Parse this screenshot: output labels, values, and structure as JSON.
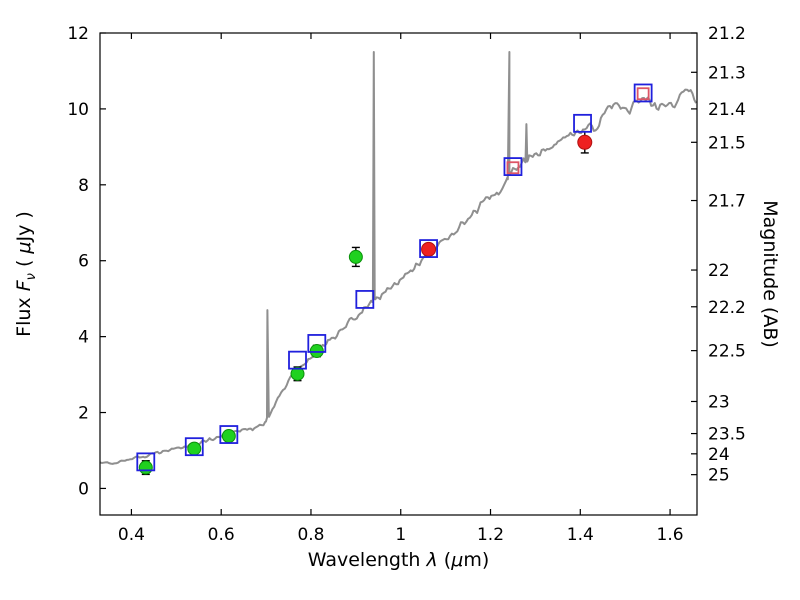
{
  "chart_data": {
    "type": "line",
    "subtype": "sed-spectrum-with-photometry",
    "title": "",
    "xlabel_parts": [
      {
        "t": "Wavelength  "
      },
      {
        "t": "λ",
        "i": 1
      },
      {
        "t": " ("
      },
      {
        "t": "μ",
        "i": 1
      },
      {
        "t": "m)"
      }
    ],
    "ylabel_left_parts": [
      {
        "t": "Flux  "
      },
      {
        "t": "F",
        "i": 1
      },
      {
        "t": "ν",
        "i": 1,
        "s": 1
      },
      {
        "t": "  ( "
      },
      {
        "t": "μ",
        "i": 1
      },
      {
        "t": "Jy )"
      }
    ],
    "ylabel_right": "Magnitude (AB)",
    "xlim": [
      0.33,
      1.66
    ],
    "ylim": [
      -0.7,
      12
    ],
    "x_ticks": [
      0.4,
      0.6,
      0.8,
      1.0,
      1.2,
      1.4,
      1.6
    ],
    "x_tick_labels": [
      "0.4",
      "0.6",
      "0.8",
      "1",
      "1.2",
      "1.4",
      "1.6"
    ],
    "y_ticks_left": [
      0,
      2,
      4,
      6,
      8,
      10,
      12
    ],
    "y_tick_labels_left": [
      "0",
      "2",
      "4",
      "6",
      "8",
      "10",
      "12"
    ],
    "y_ticks_right_mag": [
      21.2,
      21.3,
      21.4,
      21.5,
      21.7,
      22,
      22.2,
      22.5,
      23,
      23.5,
      24,
      25
    ],
    "y_tick_labels_right": [
      "21.2",
      "21.3",
      "21.4",
      "21.5",
      "21.7",
      "22",
      "22.2",
      "22.5",
      "23",
      "23.5",
      "24",
      "25"
    ],
    "mag_zeropoint": 23.9,
    "grid": false,
    "legend": null,
    "spectrum": {
      "name": "model-spectrum",
      "color": "#8f8f8f",
      "linewidth": 2,
      "noise_seed": 77,
      "noise_base": 0.045,
      "noise_flux_scale": 0.012,
      "anchors": [
        [
          0.33,
          0.7
        ],
        [
          0.36,
          0.66
        ],
        [
          0.385,
          0.74
        ],
        [
          0.41,
          0.8
        ],
        [
          0.44,
          0.88
        ],
        [
          0.47,
          0.97
        ],
        [
          0.5,
          1.05
        ],
        [
          0.53,
          1.12
        ],
        [
          0.56,
          1.22
        ],
        [
          0.59,
          1.33
        ],
        [
          0.62,
          1.45
        ],
        [
          0.65,
          1.55
        ],
        [
          0.675,
          1.6
        ],
        [
          0.695,
          1.68
        ],
        [
          0.71,
          1.95
        ],
        [
          0.725,
          2.35
        ],
        [
          0.74,
          2.65
        ],
        [
          0.755,
          2.9
        ],
        [
          0.77,
          3.1
        ],
        [
          0.785,
          3.28
        ],
        [
          0.8,
          3.45
        ],
        [
          0.815,
          3.6
        ],
        [
          0.83,
          3.75
        ],
        [
          0.845,
          3.92
        ],
        [
          0.86,
          4.1
        ],
        [
          0.875,
          4.28
        ],
        [
          0.89,
          4.42
        ],
        [
          0.905,
          4.55
        ],
        [
          0.92,
          4.72
        ],
        [
          0.935,
          4.9
        ],
        [
          0.95,
          5.05
        ],
        [
          0.97,
          5.22
        ],
        [
          0.99,
          5.42
        ],
        [
          1.01,
          5.62
        ],
        [
          1.03,
          5.82
        ],
        [
          1.05,
          6.05
        ],
        [
          1.07,
          6.25
        ],
        [
          1.09,
          6.48
        ],
        [
          1.11,
          6.7
        ],
        [
          1.13,
          6.9
        ],
        [
          1.15,
          7.1
        ],
        [
          1.17,
          7.32
        ],
        [
          1.19,
          7.55
        ],
        [
          1.21,
          7.75
        ],
        [
          1.23,
          7.95
        ],
        [
          1.245,
          8.3
        ],
        [
          1.26,
          8.5
        ],
        [
          1.275,
          8.6
        ],
        [
          1.29,
          8.7
        ],
        [
          1.31,
          8.85
        ],
        [
          1.33,
          9.0
        ],
        [
          1.35,
          9.15
        ],
        [
          1.37,
          9.28
        ],
        [
          1.39,
          9.35
        ],
        [
          1.41,
          9.42
        ],
        [
          1.43,
          9.5
        ],
        [
          1.45,
          9.75
        ],
        [
          1.465,
          10.05
        ],
        [
          1.48,
          10.15
        ],
        [
          1.5,
          9.95
        ],
        [
          1.52,
          10.1
        ],
        [
          1.54,
          10.35
        ],
        [
          1.555,
          10.2
        ],
        [
          1.57,
          10.0
        ],
        [
          1.59,
          10.0
        ],
        [
          1.61,
          10.15
        ],
        [
          1.63,
          10.45
        ],
        [
          1.645,
          10.55
        ],
        [
          1.655,
          10.05
        ],
        [
          1.66,
          10.2
        ]
      ],
      "emission_spikes": [
        [
          0.703,
          4.7
        ],
        [
          0.94,
          11.5
        ],
        [
          1.242,
          11.5
        ],
        [
          1.28,
          9.6
        ]
      ]
    },
    "photometry": [
      {
        "name": "observed-photometry-green-circles",
        "marker": "circle",
        "fill": "#1fd11f",
        "edge": "#0a8f0a",
        "size": 13,
        "points": [
          {
            "x": 0.432,
            "y": 0.55,
            "err": 0.18
          },
          {
            "x": 0.54,
            "y": 1.05,
            "err": 0.1
          },
          {
            "x": 0.617,
            "y": 1.38,
            "err": 0.1
          },
          {
            "x": 0.77,
            "y": 3.02,
            "err": 0.18
          },
          {
            "x": 0.813,
            "y": 3.62,
            "err": 0.15
          },
          {
            "x": 0.9,
            "y": 6.1,
            "err": 0.25
          }
        ]
      },
      {
        "name": "observed-photometry-red-circles",
        "marker": "circle",
        "fill": "#ee2020",
        "edge": "#b01010",
        "size": 14,
        "points": [
          {
            "x": 1.062,
            "y": 6.3,
            "err": 0.15
          },
          {
            "x": 1.41,
            "y": 9.12,
            "err": 0.28
          }
        ]
      },
      {
        "name": "model-photometry-red-open-squares",
        "marker": "square-open",
        "edge": "#dd5566",
        "size": 11,
        "points": [
          {
            "x": 1.25,
            "y": 8.45
          },
          {
            "x": 1.54,
            "y": 10.4
          }
        ]
      },
      {
        "name": "model-photometry-blue-open-squares",
        "marker": "square-open",
        "edge": "#2020dd",
        "size": 17,
        "points": [
          {
            "x": 0.432,
            "y": 0.7
          },
          {
            "x": 0.54,
            "y": 1.1
          },
          {
            "x": 0.617,
            "y": 1.42
          },
          {
            "x": 0.77,
            "y": 3.38
          },
          {
            "x": 0.813,
            "y": 3.82
          },
          {
            "x": 0.92,
            "y": 4.98
          },
          {
            "x": 1.062,
            "y": 6.32
          },
          {
            "x": 1.25,
            "y": 8.48
          },
          {
            "x": 1.405,
            "y": 9.62
          },
          {
            "x": 1.54,
            "y": 10.42
          }
        ]
      }
    ]
  }
}
